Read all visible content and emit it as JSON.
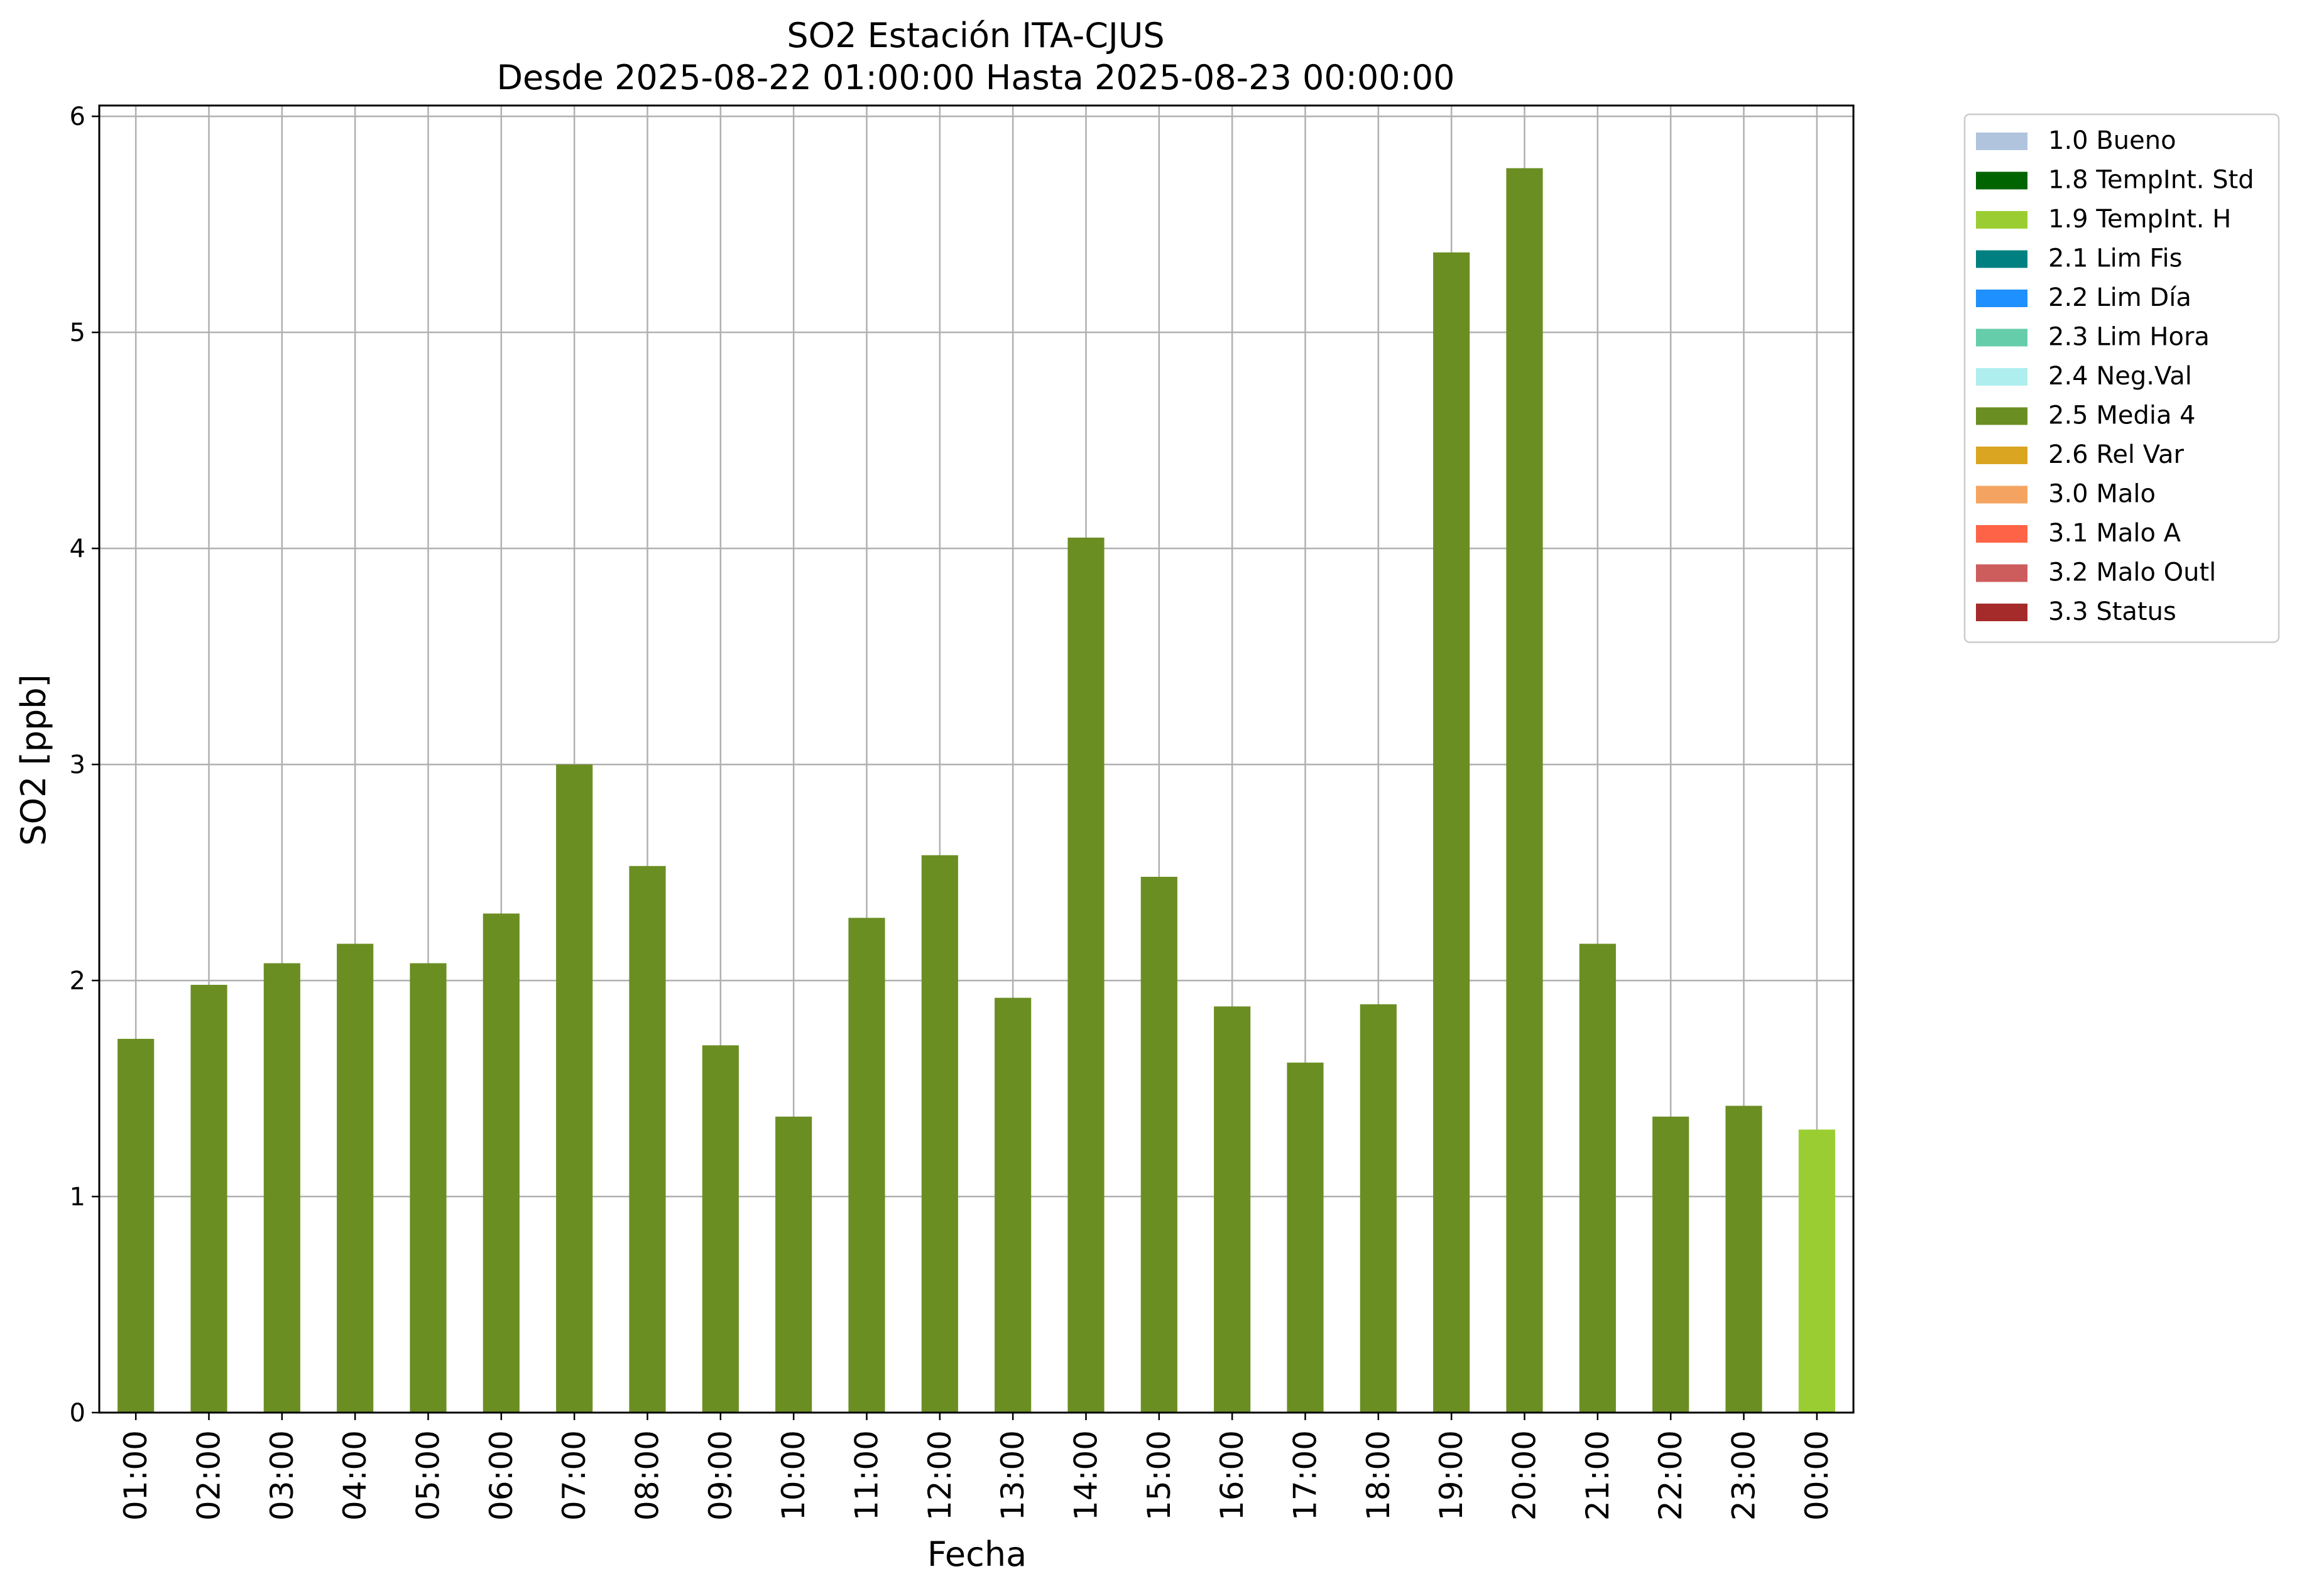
{
  "chart_data": {
    "type": "bar",
    "title": "SO2 Estación ITA-CJUS",
    "subtitle": "Desde 2025-08-22 01:00:00 Hasta 2025-08-23 00:00:00",
    "xlabel": "Fecha",
    "ylabel": "SO2 [ppb]",
    "ylim": [
      0,
      6.05
    ],
    "yticks": [
      0,
      1,
      2,
      3,
      4,
      5,
      6
    ],
    "grid": true,
    "legend_position": "outside-top-right",
    "categories": [
      "01:00",
      "02:00",
      "03:00",
      "04:00",
      "05:00",
      "06:00",
      "07:00",
      "08:00",
      "09:00",
      "10:00",
      "11:00",
      "12:00",
      "13:00",
      "14:00",
      "15:00",
      "16:00",
      "17:00",
      "18:00",
      "19:00",
      "20:00",
      "21:00",
      "22:00",
      "23:00",
      "00:00"
    ],
    "values": [
      1.73,
      1.98,
      2.08,
      2.17,
      2.08,
      2.31,
      3.0,
      2.53,
      1.7,
      1.37,
      2.29,
      2.58,
      1.92,
      4.05,
      2.48,
      1.88,
      1.62,
      1.89,
      5.37,
      5.76,
      2.17,
      1.37,
      1.42,
      1.31
    ],
    "bar_flags": [
      "2.5 Media 4",
      "2.5 Media 4",
      "2.5 Media 4",
      "2.5 Media 4",
      "2.5 Media 4",
      "2.5 Media 4",
      "2.5 Media 4",
      "2.5 Media 4",
      "2.5 Media 4",
      "2.5 Media 4",
      "2.5 Media 4",
      "2.5 Media 4",
      "2.5 Media 4",
      "2.5 Media 4",
      "2.5 Media 4",
      "2.5 Media 4",
      "2.5 Media 4",
      "2.5 Media 4",
      "2.5 Media 4",
      "2.5 Media 4",
      "2.5 Media 4",
      "2.5 Media 4",
      "2.5 Media 4",
      "1.9 TempInt. H"
    ],
    "legend": [
      {
        "label": "1.0 Bueno",
        "color": "#b0c4de"
      },
      {
        "label": "1.8 TempInt. Std",
        "color": "#006400"
      },
      {
        "label": "1.9 TempInt. H",
        "color": "#9acd32"
      },
      {
        "label": "2.1 Lim Fis",
        "color": "#008080"
      },
      {
        "label": "2.2 Lim Día",
        "color": "#1e90ff"
      },
      {
        "label": "2.3 Lim Hora",
        "color": "#66cdaa"
      },
      {
        "label": "2.4 Neg.Val",
        "color": "#afeeee"
      },
      {
        "label": "2.5 Media 4",
        "color": "#6b8e23"
      },
      {
        "label": "2.6 Rel Var",
        "color": "#daa520"
      },
      {
        "label": "3.0 Malo",
        "color": "#f4a460"
      },
      {
        "label": "3.1 Malo A",
        "color": "#ff6347"
      },
      {
        "label": "3.2 Malo Outl",
        "color": "#cd5c5c"
      },
      {
        "label": "3.3 Status",
        "color": "#a52a2a"
      }
    ]
  }
}
